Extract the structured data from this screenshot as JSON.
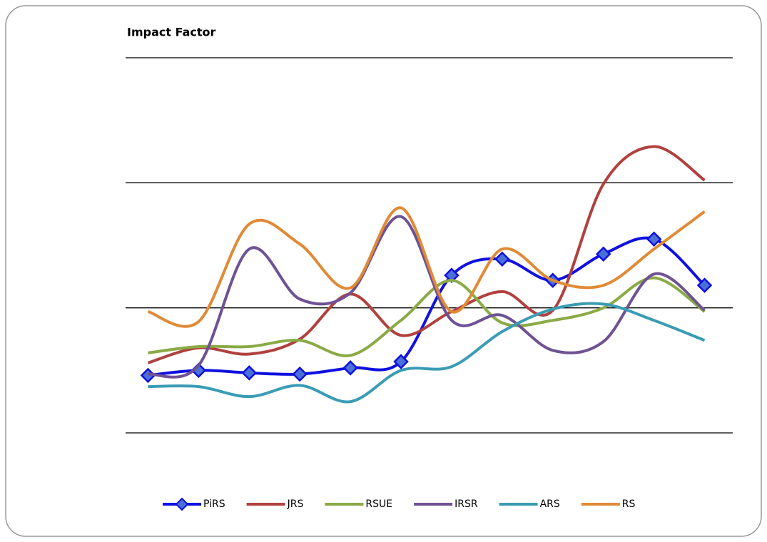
{
  "chart_data": {
    "type": "line",
    "title": "Impact Factor",
    "categories": [
      null,
      null,
      null,
      null,
      null,
      null,
      null,
      null,
      null,
      null,
      null,
      null
    ],
    "ylim": [
      0,
      3
    ],
    "yticks": [
      0,
      1,
      2,
      3
    ],
    "grid": true,
    "legend": "bottom",
    "series": [
      {
        "name": "PiRS",
        "color": "#1010e0",
        "marker": "diamond",
        "values": [
          0.46,
          0.5,
          0.48,
          0.47,
          0.52,
          0.57,
          1.26,
          1.39,
          1.22,
          1.43,
          1.55,
          1.18
        ]
      },
      {
        "name": "JRS",
        "color": "#b0413e",
        "values": [
          0.56,
          0.68,
          0.63,
          0.75,
          1.11,
          0.78,
          0.97,
          1.13,
          0.98,
          1.99,
          2.29,
          2.02
        ]
      },
      {
        "name": "RSUE",
        "color": "#8aaa45",
        "values": [
          0.64,
          0.69,
          0.69,
          0.74,
          0.62,
          0.9,
          1.22,
          0.88,
          0.9,
          1.0,
          1.24,
          0.97
        ]
      },
      {
        "name": "IRSR",
        "color": "#6e5294",
        "values": [
          0.47,
          0.54,
          1.47,
          1.07,
          1.12,
          1.73,
          0.9,
          0.94,
          0.66,
          0.73,
          1.27,
          0.98
        ]
      },
      {
        "name": "ARS",
        "color": "#3a9cb4",
        "values": [
          0.37,
          0.37,
          0.29,
          0.38,
          0.25,
          0.5,
          0.53,
          0.81,
          0.99,
          1.03,
          0.9,
          0.74
        ]
      },
      {
        "name": "RS",
        "color": "#e08a35",
        "values": [
          0.97,
          0.89,
          1.67,
          1.51,
          1.16,
          1.8,
          0.97,
          1.47,
          1.22,
          1.18,
          1.47,
          1.77
        ]
      }
    ]
  }
}
